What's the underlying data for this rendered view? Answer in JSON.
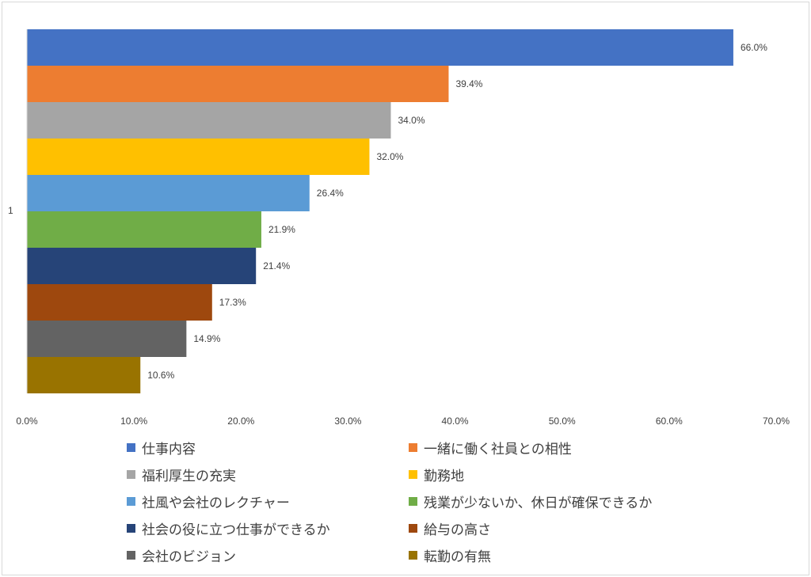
{
  "chart_data": {
    "type": "bar",
    "orientation": "horizontal",
    "categories": [
      "1"
    ],
    "xlim": [
      0,
      70
    ],
    "x_ticks": [
      "0.0%",
      "10.0%",
      "20.0%",
      "30.0%",
      "40.0%",
      "50.0%",
      "60.0%",
      "70.0%"
    ],
    "grid": false,
    "legend_position": "bottom",
    "series": [
      {
        "name": "仕事内容",
        "value": 66.0,
        "label": "66.0%",
        "color": "#4472C4"
      },
      {
        "name": "一緒に働く社員との相性",
        "value": 39.4,
        "label": "39.4%",
        "color": "#ED7D31"
      },
      {
        "name": "福利厚生の充実",
        "value": 34.0,
        "label": "34.0%",
        "color": "#A5A5A5"
      },
      {
        "name": "勤務地",
        "value": 32.0,
        "label": "32.0%",
        "color": "#FFC000"
      },
      {
        "name": "社風や会社のレクチャー",
        "value": 26.4,
        "label": "26.4%",
        "color": "#5B9BD5"
      },
      {
        "name": "残業が少ないか、休日が確保できるか",
        "value": 21.9,
        "label": "21.9%",
        "color": "#70AD47"
      },
      {
        "name": "社会の役に立つ仕事ができるか",
        "value": 21.4,
        "label": "21.4%",
        "color": "#264478"
      },
      {
        "name": "給与の高さ",
        "value": 17.3,
        "label": "17.3%",
        "color": "#9E480E"
      },
      {
        "name": "会社のビジョン",
        "value": 14.9,
        "label": "14.9%",
        "color": "#636363"
      },
      {
        "name": "転勤の有無",
        "value": 10.6,
        "label": "10.6%",
        "color": "#997300"
      }
    ]
  }
}
